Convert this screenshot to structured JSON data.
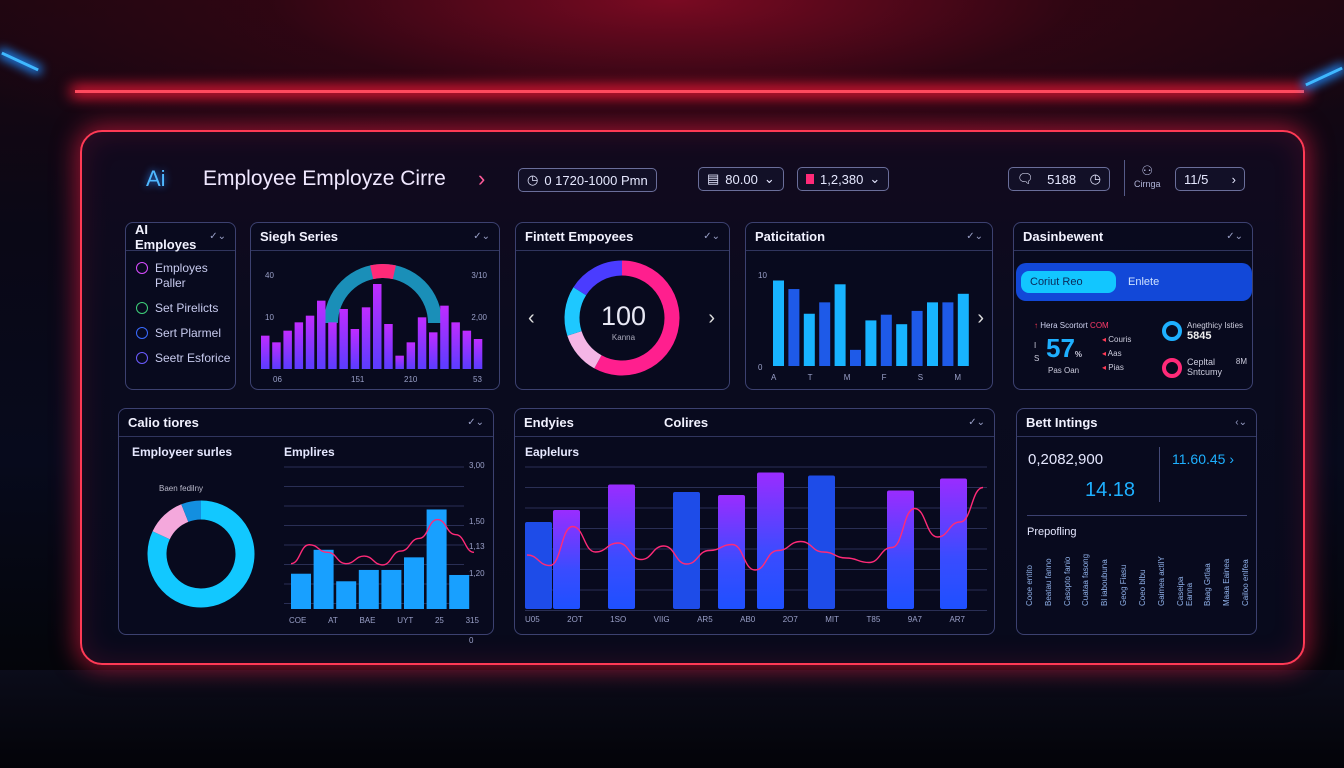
{
  "header": {
    "logo": "Ai",
    "title": "Employee Employze Cirre",
    "time_range": "0 1720-1000 Pmn",
    "value1": "80.00",
    "value2": "1,2,380",
    "messages": "5188",
    "user_label": "Cirnga",
    "page": "11/5"
  },
  "cards": {
    "ai_employees": {
      "title": "AI Employes",
      "items": [
        {
          "label": "Employes Paller",
          "icon": "circle-icon",
          "color": "#d84cff"
        },
        {
          "label": "Set Pirelicts",
          "icon": "circle-icon",
          "color": "#3ecf7a"
        },
        {
          "label": "Sert Plarmel",
          "icon": "circle-icon",
          "color": "#3a6bff"
        },
        {
          "label": "Seetr Esforice",
          "icon": "circle-icon",
          "color": "#6b5bff"
        }
      ]
    },
    "single_series": {
      "title": "Siegh Series",
      "y_left": [
        "40",
        "10"
      ],
      "y_right": [
        "3/10",
        "2,00"
      ],
      "x_labels": [
        "06",
        "151",
        "210",
        "53"
      ]
    },
    "fintett": {
      "title": "Fintett Empoyees",
      "center_value": "100",
      "center_label": "Kanna"
    },
    "paticitation": {
      "title": "Paticitation",
      "y_labels": [
        "10",
        "0"
      ],
      "x_labels": [
        "A",
        "T",
        "M",
        "F",
        "S",
        "M"
      ]
    },
    "dashboard": {
      "title": "Dasinbewent",
      "toggle_active": "Coriut Reo",
      "toggle_inactive": "Enlete",
      "stat_label": "Hera Scortort",
      "stat_tag": "COM",
      "stat_value": "57",
      "stat_unit": "%",
      "stat_sub": "Pas Oan",
      "side_i": "I",
      "side_s": "S",
      "legend": [
        "Couris",
        "Aas",
        "Pias"
      ],
      "kpi1_label": "Anegthicy Isties",
      "kpi1_value": "5845",
      "kpi2_label": "Cepltal Sntcumy",
      "kpi2_tag": "8M"
    },
    "calio": {
      "title": "Calio tiores",
      "left_title": "Employeer surles",
      "donut_label": "Baen fedilny",
      "right_title": "Emplires",
      "y_labels": [
        "3,00",
        "1,50",
        "1,13",
        "1,20",
        "0"
      ],
      "x_labels": [
        "COE",
        "AT",
        "BAE",
        "UYT",
        "25",
        "315"
      ]
    },
    "endyies": {
      "title": "Endyies",
      "center_title": "Colires",
      "subtitle": "Eaplelurs",
      "x_labels": [
        "U05",
        "2OT",
        "1SO",
        "VIIG",
        "AR5",
        "AB0",
        "2O7",
        "MIT",
        "T85",
        "9A7",
        "AR7"
      ]
    },
    "best": {
      "title": "Bett Intings",
      "value1": "0,2082,900",
      "value2": "14.18",
      "value3": "11.60.45",
      "section": "Prepofling",
      "columns": [
        "Cooe entito",
        "Beatau fanno",
        "Casopto fanio",
        "Cuataa fasong",
        "Bl iaboubuna",
        "Geog Fiasu",
        "Coeo blbu",
        "Gaimea actilY",
        "Caseipa Eanna",
        "Baag Grtlaa",
        "Maaa Eainea",
        "Cailoo enlfea"
      ]
    }
  },
  "chart_data": [
    {
      "type": "bar",
      "name": "single_series",
      "values": [
        20,
        16,
        23,
        28,
        32,
        41,
        28,
        36,
        24,
        37,
        51,
        27,
        8,
        16,
        31,
        22,
        38,
        28,
        23,
        18
      ],
      "gauge": {
        "value": 0.15,
        "colors": [
          "#1a8fb8",
          "#ff2a78"
        ]
      },
      "ylim": [
        0,
        100
      ]
    },
    {
      "type": "pie",
      "name": "fintett",
      "values": [
        58,
        12,
        14,
        16
      ],
      "colors": [
        "#ff1f8e",
        "#f4b6e6",
        "#1ec8ff",
        "#4a3cff"
      ]
    },
    {
      "type": "bar",
      "name": "paticitation",
      "values": [
        9.0,
        8.1,
        5.5,
        6.7,
        8.6,
        1.7,
        4.8,
        5.4,
        4.4,
        5.8,
        6.7,
        6.7,
        7.6
      ],
      "ylim": [
        0,
        10
      ]
    },
    {
      "type": "pie",
      "name": "calio_donut",
      "values": [
        82,
        12,
        6
      ],
      "colors": [
        "#12c8ff",
        "#f4a8dc",
        "#138fe0"
      ]
    },
    {
      "type": "bar",
      "name": "calio_bars",
      "values": [
        28,
        47,
        22,
        31,
        31,
        41,
        79,
        27
      ],
      "line": [
        36,
        51,
        45,
        36,
        42,
        35,
        46,
        56,
        71,
        59,
        45
      ],
      "ylim": [
        0,
        100
      ]
    },
    {
      "type": "bar",
      "name": "endyies_bars",
      "values": [
        58,
        66,
        83,
        78,
        76,
        91,
        89,
        79,
        87
      ],
      "purple": [
        false,
        true,
        true,
        false,
        true,
        true,
        false,
        true,
        true
      ],
      "line": [
        36,
        29,
        55,
        38,
        44,
        33,
        42,
        30,
        39,
        43,
        26,
        39,
        45,
        38,
        34,
        31,
        41,
        67,
        48,
        58,
        81
      ],
      "ylim": [
        0,
        100
      ]
    }
  ],
  "colors": {
    "accent_red": "#ff3a55",
    "accent_blue": "#1ec8ff",
    "accent_pink": "#ff2a78"
  }
}
